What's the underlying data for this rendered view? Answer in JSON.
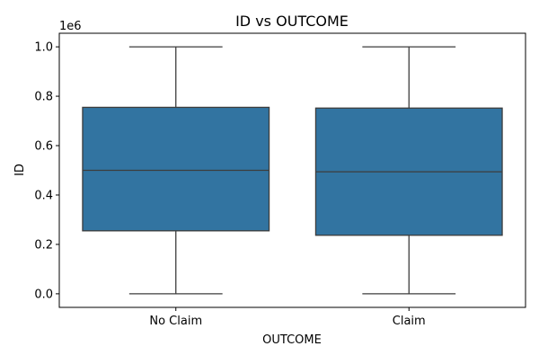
{
  "chart_data": {
    "type": "box",
    "title": "ID vs OUTCOME",
    "xlabel": "OUTCOME",
    "ylabel": "ID",
    "y_offset_label": "1e6",
    "y_scale": 1000000,
    "ylim": [
      -55000,
      1055000
    ],
    "yticks": [
      0,
      200000,
      400000,
      600000,
      800000,
      1000000
    ],
    "ytick_labels": [
      "0.0",
      "0.2",
      "0.4",
      "0.6",
      "0.8",
      "1.0"
    ],
    "categories": [
      "No Claim",
      "Claim"
    ],
    "boxes": [
      {
        "category": "No Claim",
        "whisker_low": 0,
        "q1": 255000,
        "median": 500000,
        "q3": 755000,
        "whisker_high": 1000000
      },
      {
        "category": "Claim",
        "whisker_low": 0,
        "q1": 237000,
        "median": 494000,
        "q3": 752000,
        "whisker_high": 1000000
      }
    ],
    "box_color": "#3274a1",
    "line_color": "#3d3d3d",
    "grid": false,
    "legend": "none"
  }
}
